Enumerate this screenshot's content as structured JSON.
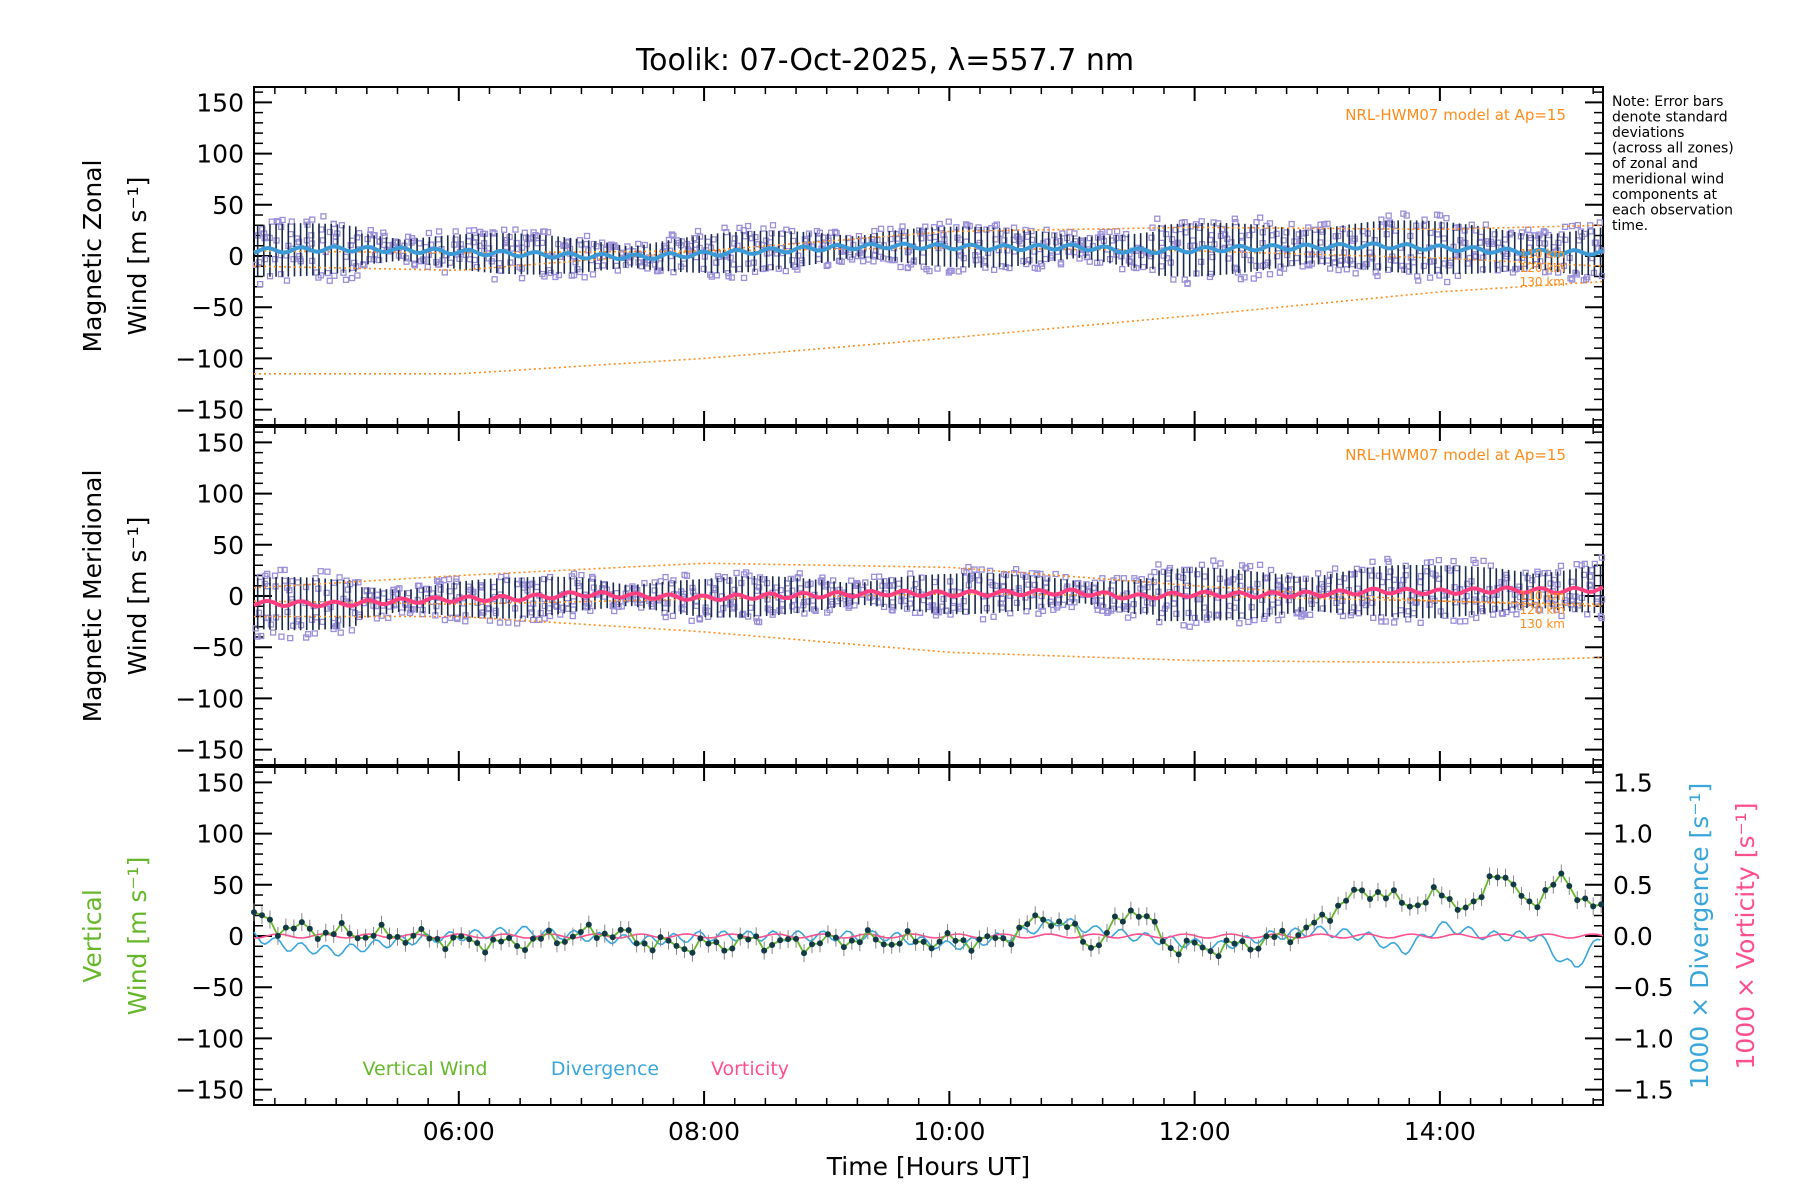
{
  "title": "Toolik: 07-Oct-2025, λ=557.7 nm",
  "note_lines": [
    "Note: Error bars",
    "denote standard",
    "deviations",
    "(across all zones)",
    "of zonal and",
    "meridional wind",
    "components at",
    "each observation",
    "time."
  ],
  "colors": {
    "axis": "#000000",
    "model": "#ff8c1a",
    "scatter": "#9a8fd8",
    "zonal_line": "#3c9ad6",
    "meridional_line": "#ff3f7f",
    "vertical": "#66b82a",
    "divergence": "#3aa6dc",
    "vorticity": "#ff4f8f",
    "errbar": "#1a2a4a"
  },
  "chart_data": [
    {
      "type": "line",
      "panel": "zonal",
      "ylabel_lines": [
        "Magnetic Zonal",
        "Wind [m s⁻¹]"
      ],
      "ylim": [
        -165,
        165
      ],
      "yticks": [
        150,
        100,
        50,
        0,
        -50,
        -100,
        -150
      ],
      "xlim": [
        4.33,
        15.33
      ],
      "model_label": "NRL-HWM07 model at Ap=15",
      "model_altitudes": [
        "110 km",
        "120 km",
        "130 km"
      ],
      "series": [
        {
          "name": "Zonal wind",
          "x": [
            4.33,
            5,
            5.5,
            6,
            6.5,
            7,
            7.5,
            8,
            8.5,
            9,
            9.5,
            10,
            10.5,
            11,
            11.5,
            12,
            12.5,
            13,
            13.5,
            14,
            14.5,
            15,
            15.33
          ],
          "values": [
            5,
            7,
            6,
            4,
            2,
            0,
            -1,
            2,
            5,
            8,
            10,
            9,
            8,
            9,
            5,
            6,
            8,
            9,
            10,
            8,
            5,
            3,
            4
          ]
        },
        {
          "name": "Model 110 km",
          "x": [
            4.33,
            6,
            8,
            10,
            12,
            14,
            15.33
          ],
          "values": [
            -10,
            -14,
            5,
            24,
            28,
            26,
            30
          ]
        },
        {
          "name": "Model 120 km",
          "x": [
            4.33,
            6,
            8,
            10,
            12,
            14,
            15.33
          ],
          "values": [
            5,
            3,
            5,
            8,
            5,
            -2,
            -10
          ]
        },
        {
          "name": "Model 130 km",
          "x": [
            4.33,
            6,
            8,
            10,
            12,
            14,
            15.33
          ],
          "values": [
            -115,
            -115,
            -100,
            -80,
            -58,
            -35,
            -25
          ]
        }
      ]
    },
    {
      "type": "line",
      "panel": "meridional",
      "ylabel_lines": [
        "Magnetic Meridional",
        "Wind [m s⁻¹]"
      ],
      "ylim": [
        -165,
        165
      ],
      "yticks": [
        150,
        100,
        50,
        0,
        -50,
        -100,
        -150
      ],
      "xlim": [
        4.33,
        15.33
      ],
      "model_label": "NRL-HWM07 model at Ap=15",
      "model_altitudes": [
        "110 km",
        "120 km",
        "130 km"
      ],
      "series": [
        {
          "name": "Meridional wind",
          "x": [
            4.33,
            5,
            5.5,
            6,
            6.5,
            7,
            7.5,
            8,
            8.5,
            9,
            9.5,
            10,
            10.5,
            11,
            11.5,
            12,
            12.5,
            13,
            13.5,
            14,
            14.5,
            15,
            15.33
          ],
          "values": [
            -7,
            -8,
            -5,
            -3,
            -2,
            2,
            0,
            -2,
            0,
            1,
            3,
            2,
            3,
            4,
            -1,
            2,
            1,
            2,
            5,
            4,
            6,
            5,
            7
          ]
        },
        {
          "name": "Model 110 km",
          "x": [
            4.33,
            6,
            8,
            10,
            12,
            14,
            15.33
          ],
          "values": [
            8,
            20,
            32,
            28,
            10,
            -5,
            -8
          ]
        },
        {
          "name": "Model 120 km",
          "x": [
            4.33,
            6,
            8,
            10,
            12,
            14,
            15.33
          ],
          "values": [
            -5,
            -8,
            -3,
            2,
            0,
            -5,
            -10
          ]
        },
        {
          "name": "Model 130 km",
          "x": [
            4.33,
            6,
            8,
            10,
            12,
            14,
            15.33
          ],
          "values": [
            -20,
            -20,
            -35,
            -55,
            -63,
            -65,
            -60
          ]
        }
      ]
    },
    {
      "type": "line",
      "panel": "vertical",
      "ylabel_lines": [
        "Vertical",
        "Wind [m s⁻¹]"
      ],
      "ylim": [
        -165,
        165
      ],
      "yticks": [
        150,
        100,
        50,
        0,
        -50,
        -100,
        -150
      ],
      "y2label": "1000 × Divergence [s⁻¹]",
      "y3label": "1000 × Vorticity [s⁻¹]",
      "y2lim": [
        -1.65,
        1.65
      ],
      "y2ticks": [
        1.5,
        1.0,
        0.5,
        0.0,
        -0.5,
        -1.0,
        -1.5
      ],
      "y2ticklabels": [
        "1.5",
        "1.0",
        "0.5",
        "0.0",
        "−0.5",
        "−1.0",
        "−1.5"
      ],
      "xlim": [
        4.33,
        15.33
      ],
      "xticks": [
        6,
        8,
        10,
        12,
        14
      ],
      "xticklabels": [
        "06:00",
        "08:00",
        "10:00",
        "12:00",
        "14:00"
      ],
      "xlabel": "Time [Hours UT]",
      "legend": [
        "Vertical Wind",
        "Divergence",
        "Vorticity"
      ],
      "series": [
        {
          "name": "Vertical Wind",
          "x": [
            4.33,
            4.5,
            4.8,
            5.2,
            5.6,
            6,
            6.4,
            6.8,
            7.2,
            7.6,
            8,
            8.4,
            8.8,
            9.2,
            9.6,
            10,
            10.4,
            10.8,
            11.0,
            11.2,
            11.5,
            11.8,
            12.2,
            12.6,
            13.0,
            13.2,
            13.5,
            13.7,
            14.0,
            14.3,
            14.45,
            14.7,
            15.0,
            15.15,
            15.33
          ],
          "values": [
            20,
            10,
            5,
            2,
            0,
            -5,
            -8,
            -2,
            5,
            -8,
            -10,
            -5,
            -8,
            -3,
            -5,
            -5,
            -5,
            20,
            5,
            -10,
            30,
            -10,
            -12,
            -5,
            10,
            35,
            45,
            30,
            40,
            25,
            70,
            30,
            55,
            40,
            20
          ]
        },
        {
          "name": "Divergence",
          "x": [
            4.33,
            4.6,
            5.0,
            5.5,
            6,
            6.5,
            7,
            7.5,
            8,
            8.5,
            9,
            9.5,
            10,
            10.5,
            10.9,
            11.2,
            11.5,
            11.8,
            12.2,
            12.6,
            13.0,
            13.4,
            13.7,
            14.0,
            14.4,
            14.8,
            15.0,
            15.1,
            15.33
          ],
          "values": [
            0.0,
            -0.1,
            -0.15,
            -0.05,
            0.0,
            0.05,
            0.0,
            -0.05,
            0.0,
            0.0,
            0.0,
            0.0,
            -0.1,
            0.0,
            0.15,
            0.05,
            0.0,
            -0.05,
            -0.1,
            0.0,
            0.05,
            0.0,
            -0.15,
            0.1,
            0.0,
            0.0,
            -0.25,
            -0.3,
            0.0
          ]
        },
        {
          "name": "Vorticity",
          "x": [
            4.33,
            6,
            8,
            10,
            12,
            14,
            15.33
          ],
          "values": [
            0.0,
            0.0,
            0.0,
            0.0,
            0.0,
            0.0,
            0.0
          ]
        }
      ]
    }
  ]
}
